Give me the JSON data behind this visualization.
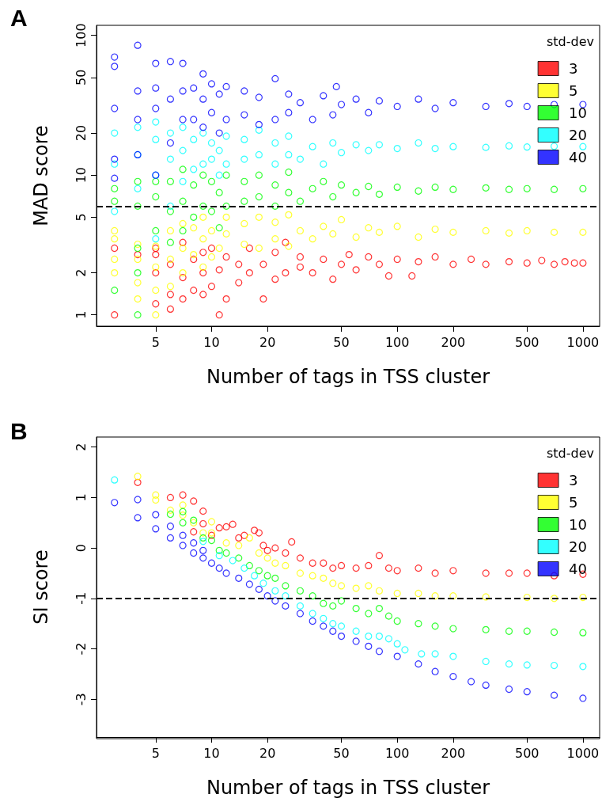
{
  "chart_data": [
    {
      "type": "scatter",
      "title": "A",
      "xlabel": "Number of tags in TSS cluster",
      "ylabel": "MAD score",
      "legend_title": "std-dev",
      "legend": "top right",
      "marker": "circle",
      "log": "xy",
      "xlim": [
        2.4,
        1230
      ],
      "ylim": [
        0.83,
        118
      ],
      "xticks": [
        5,
        10,
        20,
        50,
        100,
        200,
        500,
        1000
      ],
      "yticks": [
        1,
        2,
        5,
        10,
        20,
        50,
        100
      ],
      "ref_lines": [
        {
          "axis": "y",
          "value": 6,
          "color": "#000000",
          "line_style": "dashed"
        }
      ],
      "series": [
        {
          "name": "3",
          "color": "#ff0000",
          "x": [
            3,
            3,
            4,
            5,
            5,
            5,
            5,
            6,
            6,
            6,
            7,
            7,
            7,
            8,
            8,
            9,
            9,
            9,
            10,
            10,
            11,
            11,
            12,
            12,
            14,
            14,
            16,
            16,
            19,
            19,
            22,
            22,
            25,
            25,
            30,
            30,
            35,
            40,
            45,
            50,
            55,
            60,
            70,
            80,
            90,
            100,
            120,
            130,
            160,
            200,
            250,
            300,
            400,
            500,
            600,
            700,
            800,
            900,
            1000
          ],
          "values": [
            1,
            3,
            2.7,
            1.2,
            2,
            2.7,
            3,
            1.1,
            1.4,
            2.3,
            1.3,
            1.85,
            3.3,
            1.5,
            2.5,
            1.4,
            2,
            2.8,
            1.6,
            3,
            1,
            2.1,
            1.3,
            2.6,
            1.7,
            2.3,
            2,
            3,
            1.3,
            2.3,
            1.8,
            2.8,
            2,
            3.3,
            2.2,
            2.6,
            2,
            2.5,
            1.8,
            2.3,
            2.7,
            2.1,
            2.6,
            2.3,
            1.9,
            2.5,
            1.9,
            2.4,
            2.6,
            2.3,
            2.5,
            2.3,
            2.4,
            2.35,
            2.45,
            2.3,
            2.4,
            2.35,
            2.35
          ]
        },
        {
          "name": "5",
          "color": "#ffff00",
          "x": [
            3,
            3,
            3,
            3,
            4,
            4,
            4,
            4,
            5,
            5,
            5,
            5,
            6,
            6,
            6,
            7,
            7,
            7,
            8,
            8,
            9,
            9,
            9,
            10,
            10,
            11,
            12,
            12,
            15,
            15,
            18,
            18,
            22,
            22,
            26,
            26,
            30,
            35,
            40,
            45,
            50,
            60,
            70,
            80,
            100,
            130,
            160,
            200,
            300,
            400,
            500,
            700,
            1000
          ],
          "values": [
            2,
            2.5,
            3.5,
            4,
            1.3,
            1.7,
            2.5,
            3.2,
            1,
            1.5,
            2.2,
            3.1,
            1.6,
            2.5,
            4,
            2,
            3,
            4.5,
            2.7,
            4.2,
            2.2,
            3.5,
            5,
            2.6,
            4,
            3,
            3.8,
            5,
            3.2,
            4.5,
            3,
            5,
            3.5,
            4.6,
            3.1,
            5.2,
            4,
            3.5,
            4.3,
            3.8,
            4.8,
            3.6,
            4.2,
            3.9,
            4.3,
            3.6,
            4.1,
            3.9,
            4,
            3.85,
            4,
            3.9,
            3.9
          ]
        },
        {
          "name": "10",
          "color": "#00ff00",
          "x": [
            3,
            3,
            3,
            4,
            4,
            4,
            4,
            4,
            5,
            5,
            5,
            6,
            6,
            6,
            7,
            7,
            7,
            8,
            8,
            9,
            9,
            10,
            10,
            11,
            11,
            12,
            12,
            15,
            15,
            18,
            18,
            22,
            22,
            26,
            26,
            30,
            35,
            40,
            45,
            50,
            60,
            70,
            80,
            100,
            130,
            160,
            200,
            300,
            400,
            500,
            700,
            1000
          ],
          "values": [
            1.5,
            6.5,
            8,
            1,
            2,
            3,
            6,
            9,
            4,
            7,
            9,
            3.3,
            5.5,
            9,
            4,
            6.5,
            11,
            5,
            8.5,
            6,
            10,
            5.5,
            9,
            4.2,
            7.5,
            6,
            10,
            6.5,
            9,
            7,
            10,
            6,
            8.5,
            7.5,
            10.5,
            6.5,
            8,
            9,
            7,
            8.5,
            7.5,
            8.3,
            7.3,
            8.2,
            7.7,
            8.2,
            7.9,
            8.1,
            7.9,
            8,
            7.9,
            8
          ]
        },
        {
          "name": "20",
          "color": "#00ffff",
          "x": [
            3,
            3,
            3,
            4,
            4,
            4,
            5,
            5,
            5,
            5,
            6,
            6,
            6,
            7,
            7,
            7,
            8,
            8,
            9,
            9,
            10,
            10,
            11,
            11,
            12,
            12,
            15,
            15,
            18,
            18,
            22,
            22,
            26,
            26,
            30,
            35,
            40,
            45,
            50,
            60,
            70,
            80,
            100,
            130,
            160,
            200,
            300,
            400,
            500,
            700,
            1000
          ],
          "values": [
            5.5,
            12,
            20,
            8,
            14,
            22,
            3.5,
            10,
            18,
            24,
            6,
            13,
            20,
            9,
            15,
            22,
            11,
            18,
            12,
            20,
            13,
            17,
            10,
            15,
            12,
            19,
            13,
            18,
            14,
            21,
            12,
            17,
            14,
            19,
            13,
            16,
            12,
            17,
            14.5,
            16.5,
            15,
            16.5,
            15.5,
            17,
            15.5,
            16,
            15.8,
            16.2,
            15.9,
            16.1,
            16
          ]
        },
        {
          "name": "40",
          "color": "#0000ff",
          "x": [
            3,
            3,
            3,
            3,
            3,
            4,
            4,
            4,
            4,
            5,
            5,
            5,
            5,
            6,
            6,
            6,
            7,
            7,
            7,
            8,
            8,
            9,
            9,
            9,
            10,
            10,
            11,
            11,
            12,
            12,
            15,
            15,
            18,
            18,
            22,
            22,
            26,
            26,
            30,
            35,
            40,
            45,
            47,
            50,
            60,
            70,
            80,
            100,
            130,
            160,
            200,
            300,
            400,
            500,
            700,
            1000
          ],
          "values": [
            9.5,
            13,
            30,
            60,
            70,
            14,
            25,
            40,
            85,
            10,
            30,
            42,
            63,
            17,
            35,
            65,
            25,
            40,
            63,
            25,
            42,
            22,
            35,
            53,
            28,
            45,
            20,
            38,
            25,
            43,
            27,
            40,
            23,
            36,
            25,
            49,
            28,
            38,
            33,
            25,
            37,
            27,
            43,
            32,
            35,
            28,
            34,
            31,
            35,
            30,
            33,
            31,
            32.5,
            31,
            32,
            32
          ]
        }
      ]
    },
    {
      "type": "scatter",
      "title": "B",
      "xlabel": "Number of tags in TSS cluster",
      "ylabel": "SI score",
      "legend_title": "std-dev",
      "legend": "top right",
      "marker": "circle",
      "log": "x",
      "xlim": [
        2.4,
        1230
      ],
      "ylim": [
        -3.75,
        2.2
      ],
      "xticks": [
        5,
        10,
        20,
        50,
        100,
        200,
        500,
        1000
      ],
      "yticks": [
        -3,
        -2,
        -1,
        0,
        1,
        2
      ],
      "ref_lines": [
        {
          "axis": "y",
          "value": -1,
          "color": "#000000",
          "line_style": "dashed"
        }
      ],
      "series": [
        {
          "name": "3",
          "color": "#ff0000",
          "x": [
            4,
            6,
            7,
            8,
            8,
            9,
            9,
            10,
            11,
            12,
            13,
            14,
            15,
            17,
            18,
            19,
            20,
            22,
            25,
            27,
            30,
            35,
            40,
            45,
            50,
            60,
            70,
            80,
            90,
            100,
            130,
            160,
            200,
            300,
            400,
            500,
            700,
            1000
          ],
          "values": [
            1.3,
            1,
            1.05,
            0.93,
            0.32,
            0.73,
            0.48,
            0.25,
            0.4,
            0.42,
            0.47,
            0.2,
            0.25,
            0.35,
            0.3,
            0.05,
            -0.05,
            0,
            -0.1,
            0.12,
            -0.2,
            -0.3,
            -0.3,
            -0.4,
            -0.35,
            -0.4,
            -0.35,
            -0.15,
            -0.4,
            -0.45,
            -0.4,
            -0.5,
            -0.45,
            -0.5,
            -0.5,
            -0.5,
            -0.55,
            -0.52
          ]
        },
        {
          "name": "5",
          "color": "#ffff00",
          "x": [
            4,
            5,
            5,
            6,
            7,
            7,
            8,
            9,
            10,
            10,
            12,
            14,
            16,
            18,
            20,
            22,
            25,
            30,
            35,
            40,
            45,
            50,
            60,
            70,
            80,
            100,
            130,
            160,
            200,
            300,
            500,
            700,
            1000
          ],
          "values": [
            1.42,
            1.05,
            0.95,
            0.75,
            0.85,
            0.65,
            0.5,
            0.3,
            0.52,
            0.3,
            0.1,
            0.05,
            0.2,
            -0.1,
            -0.2,
            -0.3,
            -0.35,
            -0.5,
            -0.55,
            -0.6,
            -0.7,
            -0.75,
            -0.8,
            -0.75,
            -0.85,
            -0.9,
            -0.9,
            -0.95,
            -0.95,
            -0.97,
            -0.98,
            -1,
            -0.98
          ]
        },
        {
          "name": "10",
          "color": "#00ff00",
          "x": [
            6,
            7,
            7,
            8,
            9,
            10,
            11,
            12,
            14,
            16,
            18,
            20,
            22,
            25,
            30,
            35,
            40,
            45,
            50,
            60,
            70,
            80,
            90,
            100,
            130,
            160,
            200,
            300,
            400,
            500,
            700,
            1000
          ],
          "values": [
            0.67,
            0.72,
            0.5,
            0.55,
            0.2,
            0.15,
            -0.05,
            -0.1,
            -0.2,
            -0.35,
            -0.45,
            -0.55,
            -0.6,
            -0.75,
            -0.85,
            -0.95,
            -1.1,
            -1.15,
            -1.05,
            -1.2,
            -1.3,
            -1.2,
            -1.35,
            -1.45,
            -1.5,
            -1.55,
            -1.6,
            -1.62,
            -1.65,
            -1.65,
            -1.67,
            -1.68
          ]
        },
        {
          "name": "20",
          "color": "#00ffff",
          "x": [
            3,
            9,
            11,
            13,
            15,
            17,
            19,
            22,
            25,
            30,
            35,
            40,
            45,
            50,
            60,
            70,
            80,
            90,
            100,
            110,
            135,
            160,
            200,
            300,
            400,
            500,
            700,
            1000
          ],
          "values": [
            1.35,
            0.13,
            -0.15,
            -0.25,
            -0.4,
            -0.55,
            -0.7,
            -0.85,
            -0.95,
            -1.15,
            -1.3,
            -1.4,
            -1.5,
            -1.55,
            -1.65,
            -1.75,
            -1.75,
            -1.8,
            -1.9,
            -2.02,
            -2.1,
            -2.1,
            -2.15,
            -2.25,
            -2.3,
            -2.32,
            -2.33,
            -2.35
          ]
        },
        {
          "name": "40",
          "color": "#0000ff",
          "x": [
            3,
            4,
            4,
            5,
            5,
            6,
            6,
            7,
            7,
            8,
            8,
            9,
            9,
            10,
            11,
            12,
            14,
            16,
            18,
            20,
            22,
            25,
            30,
            35,
            40,
            45,
            50,
            60,
            70,
            80,
            100,
            130,
            160,
            200,
            250,
            300,
            400,
            500,
            700,
            1000
          ],
          "values": [
            0.9,
            0.96,
            0.6,
            0.66,
            0.38,
            0.43,
            0.2,
            0.25,
            0.05,
            0.1,
            -0.1,
            -0.05,
            -0.2,
            -0.3,
            -0.4,
            -0.5,
            -0.6,
            -0.72,
            -0.82,
            -0.95,
            -1.05,
            -1.15,
            -1.3,
            -1.45,
            -1.55,
            -1.65,
            -1.75,
            -1.85,
            -1.95,
            -2.05,
            -2.15,
            -2.3,
            -2.45,
            -2.55,
            -2.65,
            -2.72,
            -2.8,
            -2.85,
            -2.92,
            -2.98
          ]
        }
      ]
    }
  ]
}
